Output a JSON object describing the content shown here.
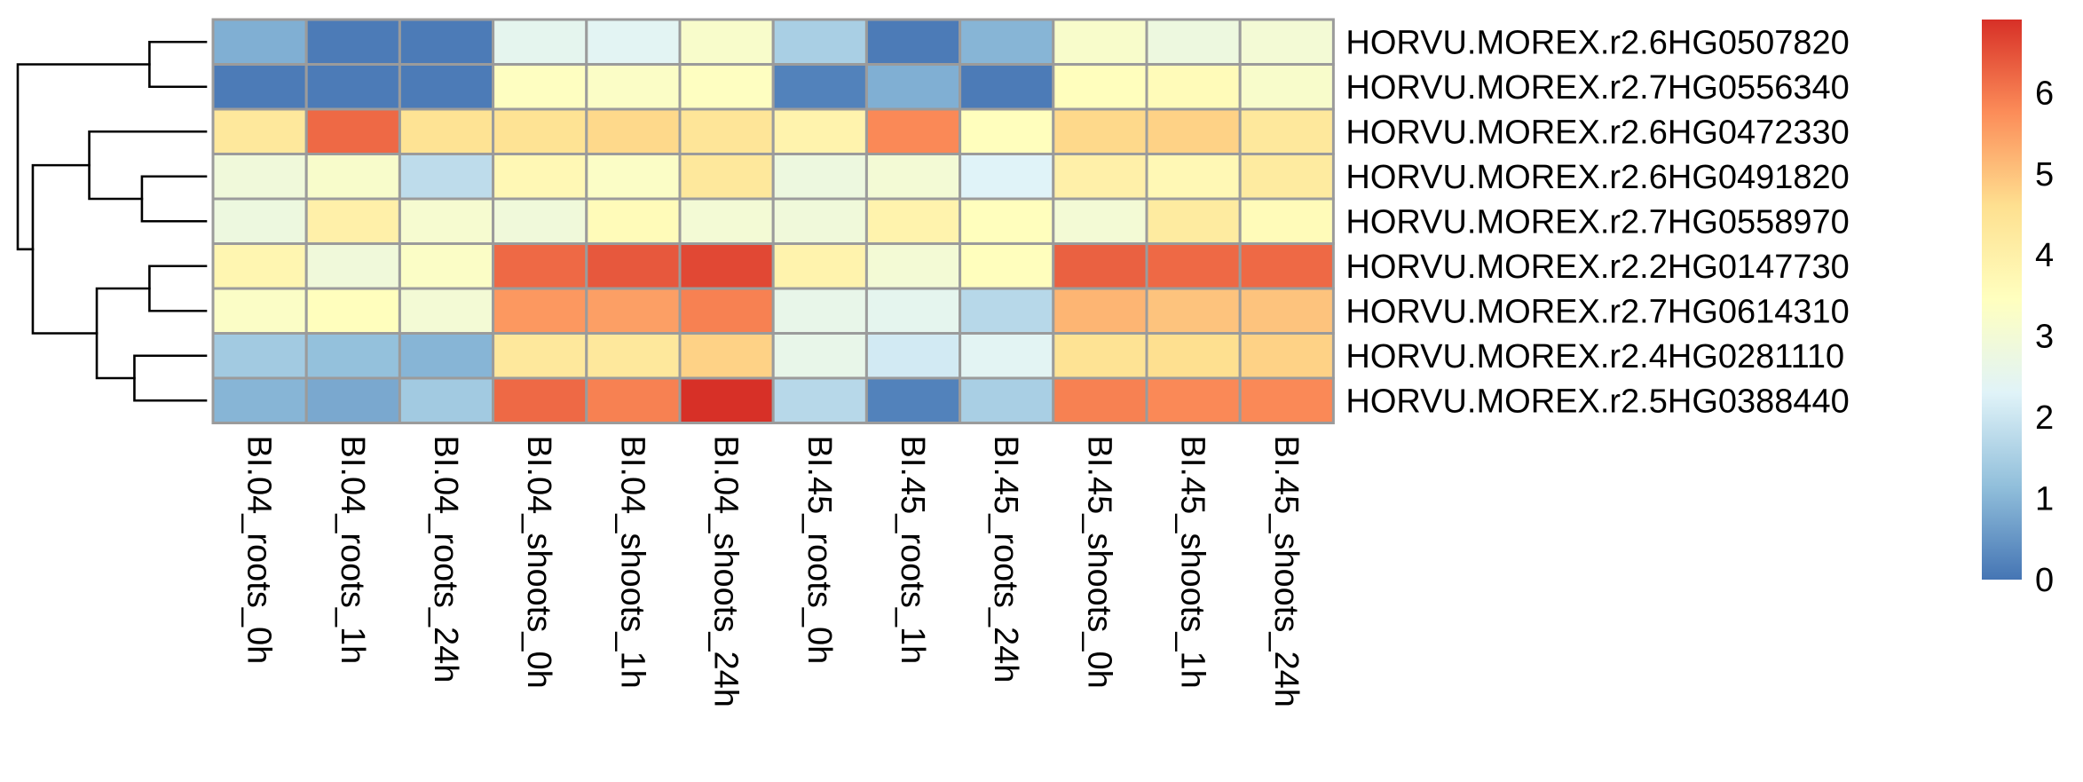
{
  "chart_data": {
    "type": "heatmap",
    "title": "",
    "xlabel": "",
    "ylabel": "",
    "columns": [
      "BI.04_roots_0h",
      "BI.04_roots_1h",
      "BI.04_roots_24h",
      "BI.04_shoots_0h",
      "BI.04_shoots_1h",
      "BI.04_shoots_24h",
      "BI.45_roots_0h",
      "BI.45_roots_1h",
      "BI.45_roots_24h",
      "BI.45_shoots_0h",
      "BI.45_shoots_1h",
      "BI.45_shoots_24h"
    ],
    "rows": [
      "HORVU.MOREX.r2.6HG0507820",
      "HORVU.MOREX.r2.7HG0556340",
      "HORVU.MOREX.r2.6HG0472330",
      "HORVU.MOREX.r2.6HG0491820",
      "HORVU.MOREX.r2.7HG0558970",
      "HORVU.MOREX.r2.2HG0147730",
      "HORVU.MOREX.r2.7HG0614310",
      "HORVU.MOREX.r2.4HG0281110",
      "HORVU.MOREX.r2.5HG0388440"
    ],
    "values": [
      [
        0.9,
        0.1,
        0.1,
        2.5,
        2.4,
        3.2,
        1.5,
        0.1,
        1.0,
        3.2,
        2.8,
        3.0
      ],
      [
        0.1,
        0.1,
        0.1,
        3.4,
        3.3,
        3.4,
        0.2,
        0.9,
        0.1,
        3.5,
        3.6,
        3.2
      ],
      [
        4.3,
        6.2,
        4.5,
        4.5,
        4.7,
        4.4,
        3.9,
        5.8,
        3.5,
        4.7,
        4.8,
        4.3
      ],
      [
        2.9,
        3.2,
        1.8,
        3.7,
        3.3,
        4.3,
        2.8,
        3.0,
        2.3,
        4.0,
        3.7,
        4.2
      ],
      [
        2.8,
        4.0,
        3.1,
        2.9,
        3.6,
        3.0,
        2.9,
        3.9,
        3.5,
        3.0,
        4.2,
        3.6
      ],
      [
        3.8,
        2.9,
        3.3,
        6.2,
        6.4,
        6.6,
        3.9,
        3.0,
        3.5,
        6.3,
        6.2,
        6.2
      ],
      [
        3.3,
        3.5,
        3.0,
        5.6,
        5.5,
        5.9,
        2.6,
        2.5,
        1.7,
        5.2,
        5.0,
        5.0
      ],
      [
        1.4,
        1.2,
        1.0,
        4.3,
        4.3,
        4.8,
        2.6,
        2.1,
        2.4,
        4.5,
        4.6,
        4.8
      ],
      [
        1.0,
        0.8,
        1.4,
        6.2,
        5.9,
        6.9,
        1.7,
        0.2,
        1.5,
        5.9,
        5.8,
        5.8
      ]
    ],
    "colorbar": {
      "ticks": [
        "0",
        "1",
        "2",
        "3",
        "4",
        "5",
        "6"
      ],
      "min": 0,
      "max": 6.9,
      "palette": [
        "#4575B4",
        "#91BFDB",
        "#E0F3F8",
        "#FFFFBF",
        "#FEE090",
        "#FC8D59",
        "#D73027"
      ]
    },
    "dendrogram": {
      "leaf_order": [
        0,
        1,
        2,
        3,
        4,
        5,
        6,
        7,
        8
      ],
      "merges": [
        [
          0,
          1,
          0.3
        ],
        [
          3,
          4,
          0.34
        ],
        [
          5,
          6,
          0.3
        ],
        [
          7,
          8,
          0.38
        ],
        [
          2,
          10,
          0.62
        ],
        [
          11,
          12,
          0.58
        ],
        [
          13,
          14,
          0.92
        ],
        [
          9,
          15,
          1.0
        ]
      ]
    },
    "grid": false
  }
}
